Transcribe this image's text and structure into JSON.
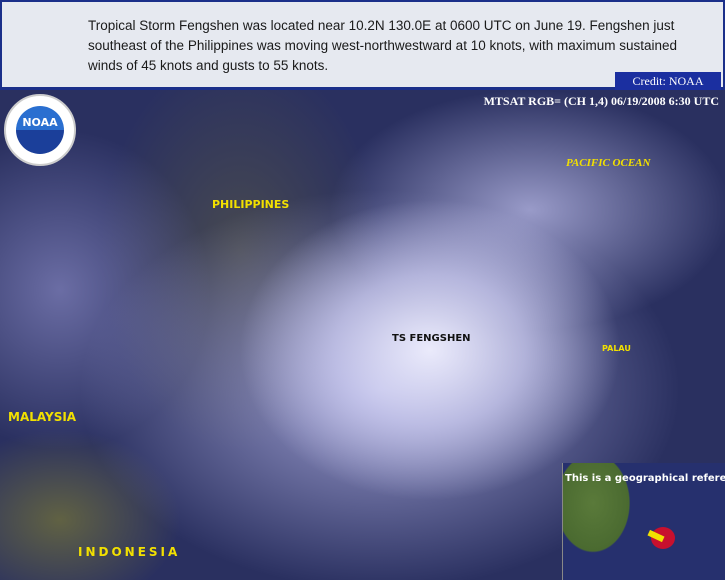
{
  "header": {
    "caption": "Tropical Storm Fengshen was located near 10.2N 130.0E at 0600 UTC on June 19. Fengshen just southeast of the Philippines was moving west-northwestward at 10 knots, with maximum sustained winds of 45 knots and gusts to 55 knots.",
    "credit": "Credit: NOAA"
  },
  "image": {
    "sensor_label": "MTSAT RGB= (CH 1,4) 06/19/2008 6:30 UTC",
    "logo": "NOAA",
    "labels": {
      "philippines": "PHILIPPINES",
      "pacific": "PACIFIC OCEAN",
      "storm": "TS FENGSHEN",
      "palau": "PALAU",
      "malaysia": "MALAYSIA",
      "indonesia": "INDONESIA"
    }
  },
  "inset": {
    "text": "This is a geographical reference",
    "storm_color": "#c8102e",
    "arrow_color": "#f2e000"
  },
  "colors": {
    "label": "#f2e000",
    "header_border": "#1b2f8a"
  }
}
